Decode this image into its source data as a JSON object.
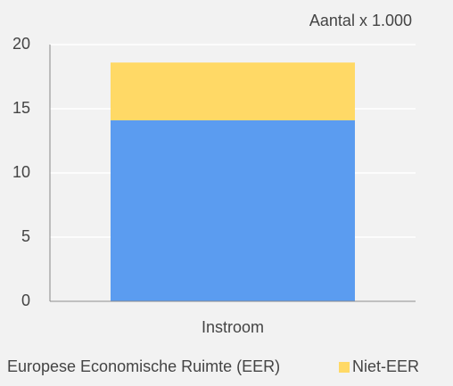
{
  "chart_data": {
    "type": "stacked_bar",
    "annotation": "Aantal x 1.000",
    "categories": [
      "Instroom"
    ],
    "series": [
      {
        "name": "Europese Economische Ruimte (EER)",
        "color": "#5b9cf0",
        "values": [
          14.1
        ]
      },
      {
        "name": "Niet-EER",
        "color": "#ffd966",
        "values": [
          4.5
        ]
      }
    ],
    "ylim": [
      0,
      20
    ],
    "yticks": [
      0,
      5,
      10,
      15,
      20
    ],
    "grid": true
  }
}
